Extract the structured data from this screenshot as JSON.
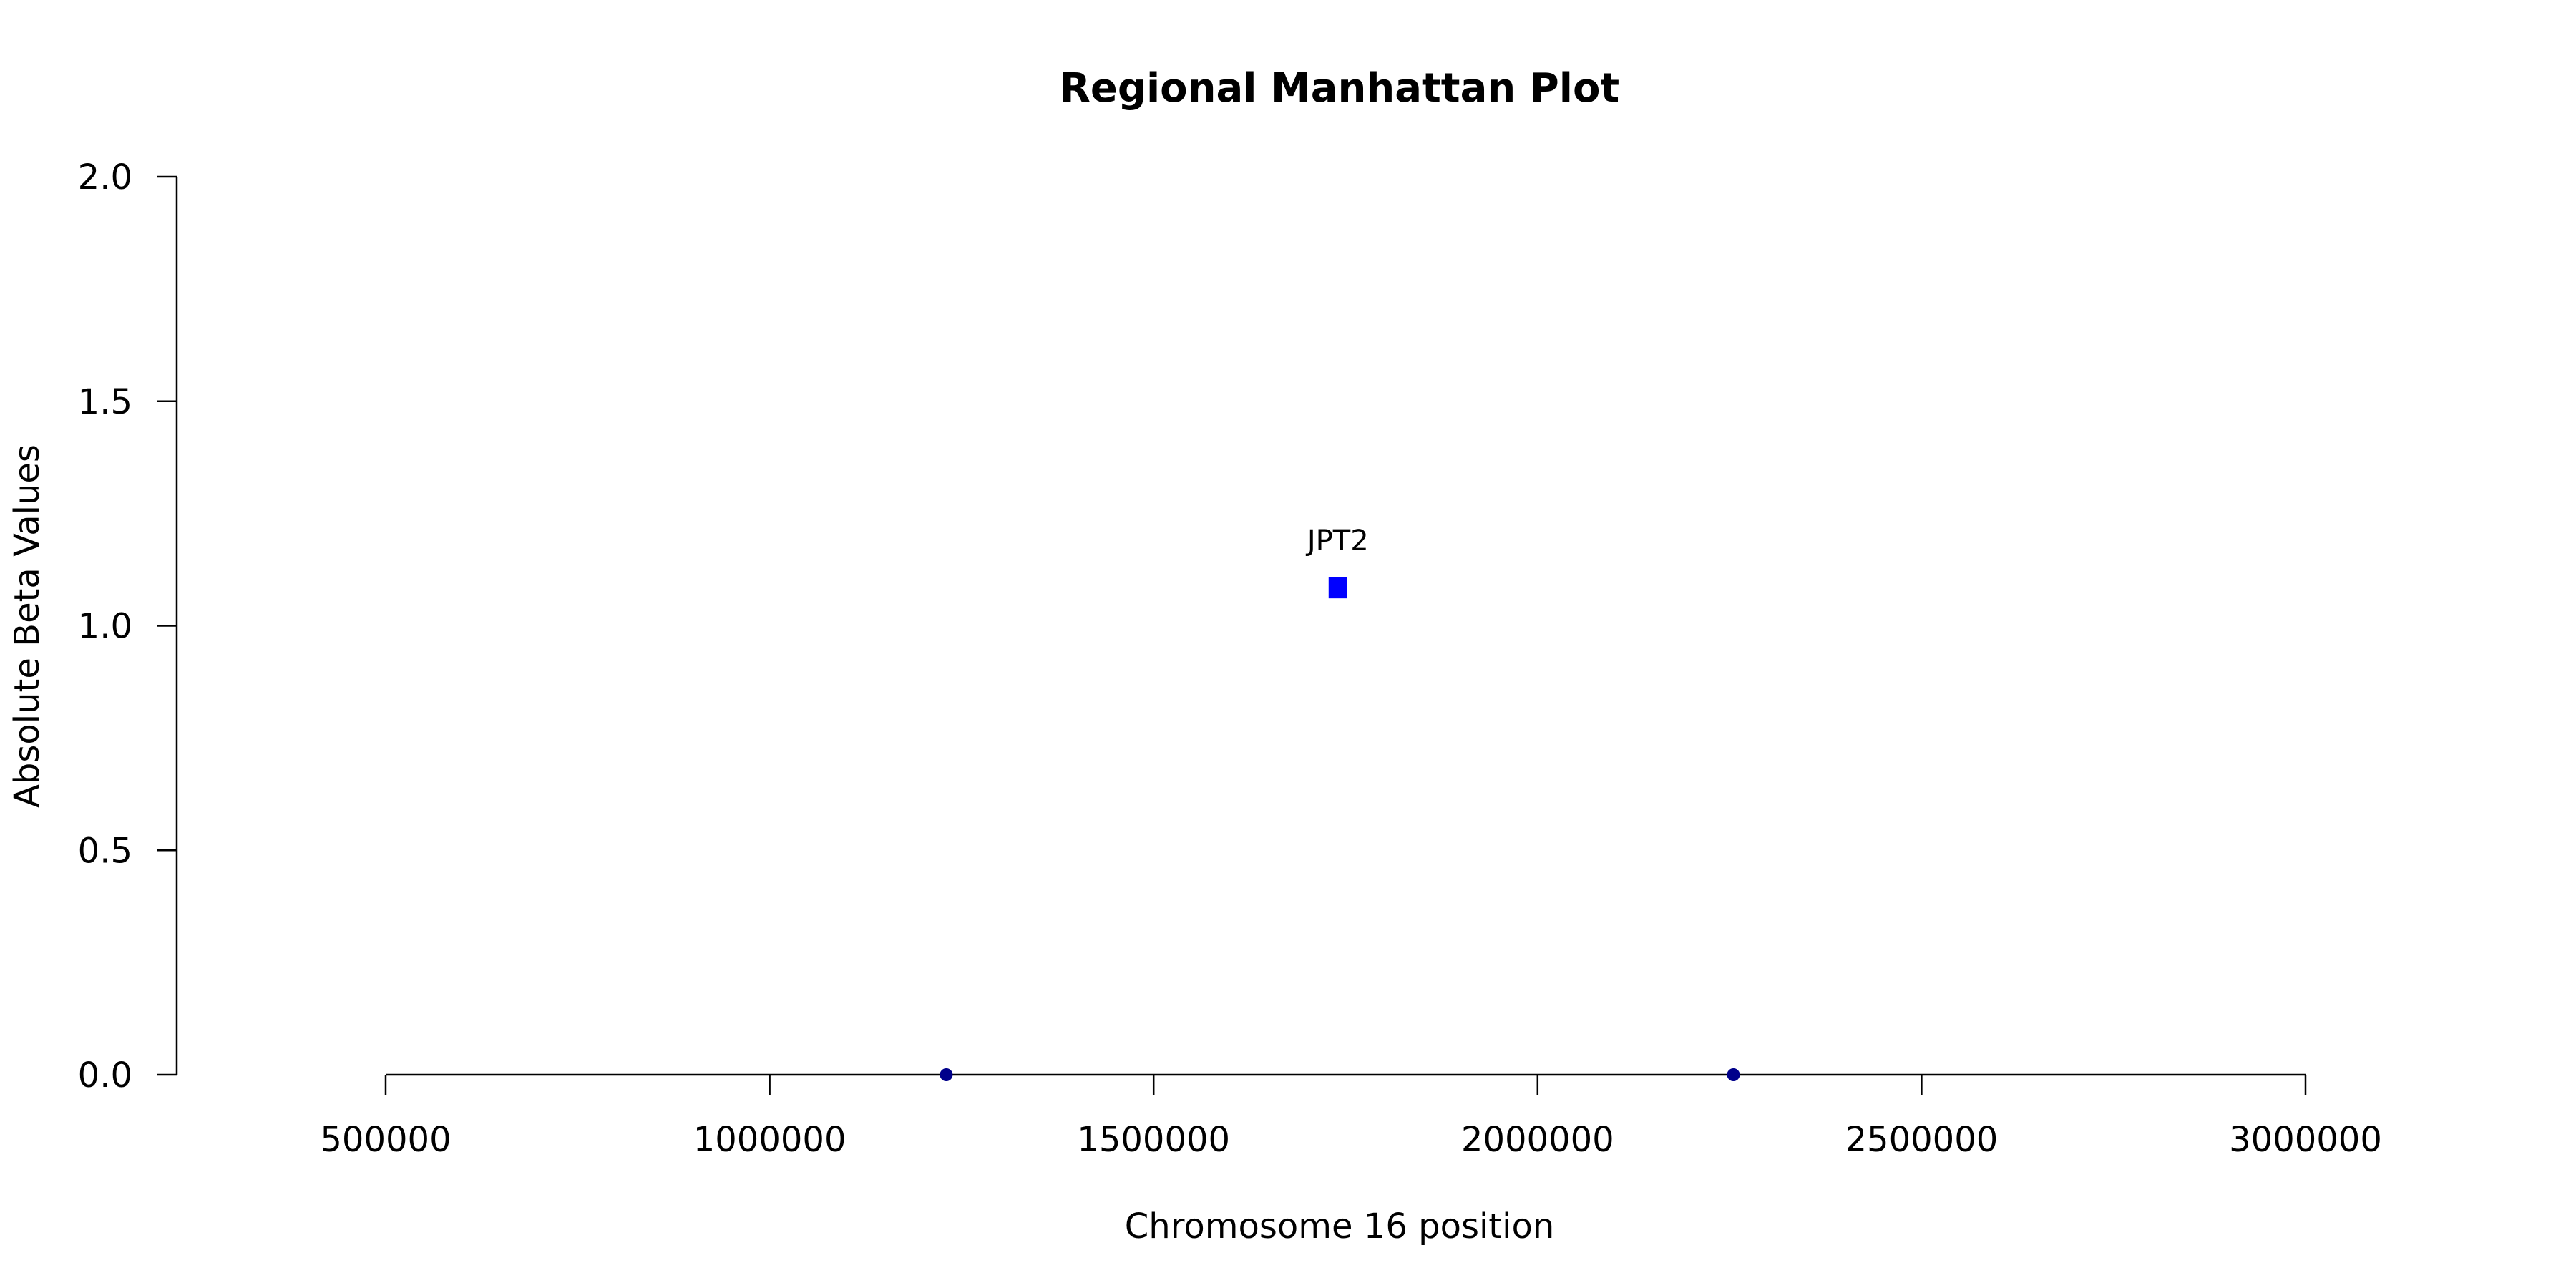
{
  "chart_data": {
    "type": "scatter",
    "title": "Regional Manhattan Plot",
    "xlabel": "Chromosome 16 position",
    "ylabel": "Absolute Beta Values",
    "xlim": [
      500000,
      3000000
    ],
    "ylim": [
      0,
      2
    ],
    "x_ticks": [
      500000,
      1000000,
      1500000,
      2000000,
      2500000,
      3000000
    ],
    "x_tick_labels": [
      "500000",
      "1000000",
      "1500000",
      "2000000",
      "2500000",
      "3000000"
    ],
    "y_ticks": [
      0,
      0.5,
      1,
      1.5,
      2
    ],
    "y_tick_labels": [
      "0.0",
      "0.5",
      "1.0",
      "1.5",
      "2.0"
    ],
    "grid": false,
    "series": [
      {
        "marker": "circle",
        "color": "#00008b",
        "points": [
          {
            "x": 1230000,
            "y": 0.0
          },
          {
            "x": 2255000,
            "y": 0.0
          }
        ]
      },
      {
        "marker": "square",
        "color": "#0000ff",
        "points": [
          {
            "x": 1740000,
            "y": 1.085,
            "label": "JPT2"
          }
        ]
      }
    ]
  }
}
